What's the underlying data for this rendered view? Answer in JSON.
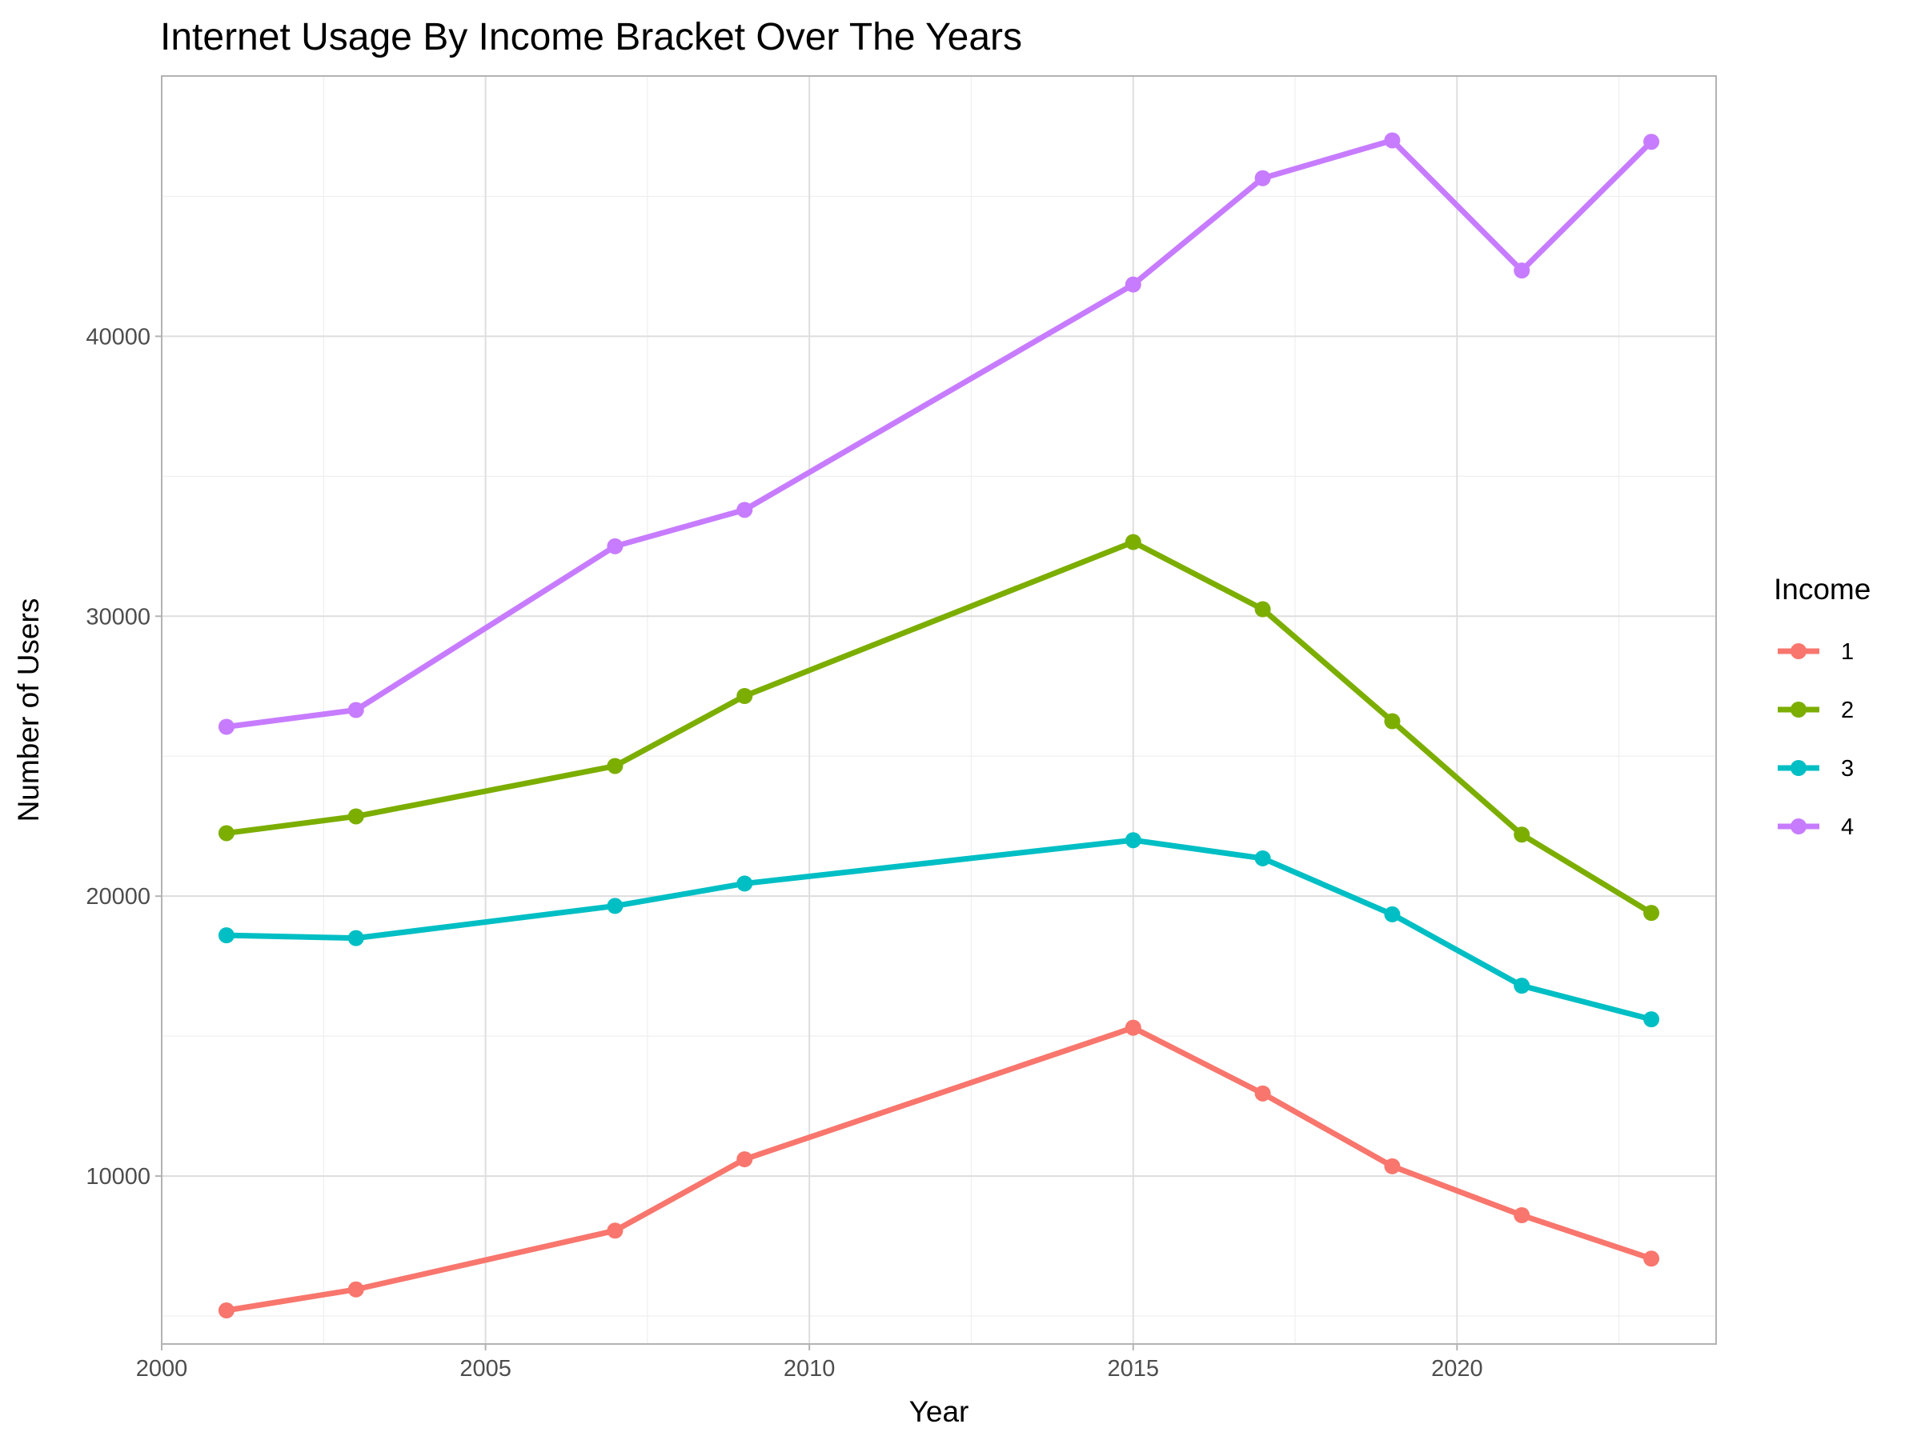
{
  "chart_data": {
    "type": "line",
    "title": "Internet Usage By Income Bracket Over The Years",
    "xlabel": "Year",
    "ylabel": "Number of Users",
    "x": [
      2001,
      2003,
      2007,
      2009,
      2015,
      2017,
      2019,
      2021,
      2023
    ],
    "xlim": [
      2000,
      2024
    ],
    "ylim": [
      4000,
      49300
    ],
    "xticks": [
      2000,
      2005,
      2010,
      2015,
      2020
    ],
    "yticks": [
      10000,
      20000,
      30000,
      40000
    ],
    "xtick_labels": [
      "2000",
      "2005",
      "2010",
      "2015",
      "2020"
    ],
    "ytick_labels": [
      "10000",
      "20000",
      "30000",
      "40000"
    ],
    "grid": true,
    "legend": {
      "title": "Income",
      "placement": "right"
    },
    "series": [
      {
        "name": "1",
        "color": "#F8766D",
        "values": [
          5200,
          5950,
          8050,
          10600,
          15300,
          12950,
          10350,
          8600,
          7050
        ]
      },
      {
        "name": "2",
        "color": "#7CAE00",
        "values": [
          22250,
          22850,
          24650,
          27150,
          32650,
          30250,
          26250,
          22200,
          19400
        ]
      },
      {
        "name": "3",
        "color": "#00BFC4",
        "values": [
          18600,
          18500,
          19650,
          20450,
          22000,
          21350,
          19350,
          16800,
          15600
        ]
      },
      {
        "name": "4",
        "color": "#C77CFF",
        "values": [
          26050,
          26650,
          32500,
          33800,
          41850,
          45650,
          47000,
          42350,
          46950
        ]
      }
    ]
  }
}
